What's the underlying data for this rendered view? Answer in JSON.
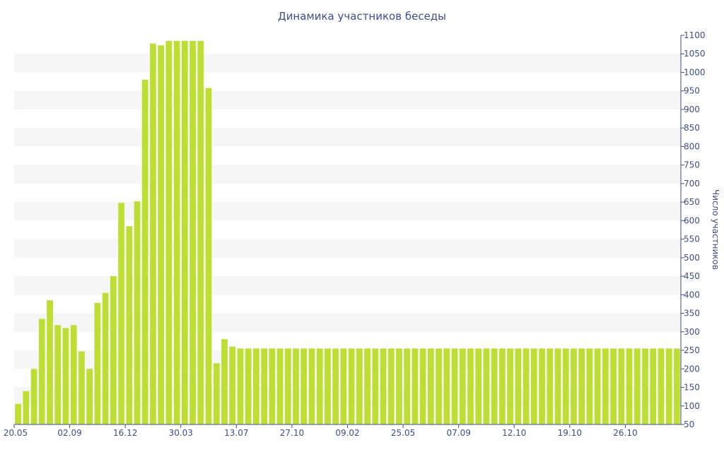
{
  "chart_data": {
    "type": "bar",
    "title": "Динамика участников беседы",
    "ylabel": "Число участников",
    "xlabel": "",
    "ylim": [
      50,
      1100
    ],
    "y_ticks": [
      50,
      100,
      150,
      200,
      250,
      300,
      350,
      400,
      450,
      500,
      550,
      600,
      650,
      700,
      750,
      800,
      850,
      900,
      950,
      1000,
      1050,
      1100
    ],
    "x_tick_labels": [
      {
        "label": "20.05",
        "index": 0
      },
      {
        "label": "02.09",
        "index": 7
      },
      {
        "label": "16.12",
        "index": 14
      },
      {
        "label": "30.03",
        "index": 21
      },
      {
        "label": "13.07",
        "index": 28
      },
      {
        "label": "27.10",
        "index": 35
      },
      {
        "label": "09.02",
        "index": 42
      },
      {
        "label": "25.05",
        "index": 49
      },
      {
        "label": "07.09",
        "index": 56
      },
      {
        "label": "12.10",
        "index": 63
      },
      {
        "label": "19.10",
        "index": 70
      },
      {
        "label": "26.10",
        "index": 77
      }
    ],
    "bar_color": "#bddf33",
    "grid": true,
    "values": [
      105,
      140,
      200,
      335,
      385,
      318,
      310,
      318,
      247,
      200,
      378,
      405,
      450,
      648,
      585,
      652,
      980,
      1078,
      1073,
      1085,
      1085,
      1085,
      1085,
      1085,
      958,
      215,
      280,
      260,
      255,
      255,
      255,
      255,
      255,
      255,
      255,
      255,
      255,
      255,
      255,
      255,
      255,
      255,
      255,
      255,
      255,
      255,
      255,
      255,
      255,
      255,
      255,
      255,
      255,
      255,
      255,
      255,
      255,
      255,
      255,
      255,
      255,
      255,
      255,
      255,
      255,
      255,
      255,
      255,
      255,
      255,
      255,
      255,
      255,
      255,
      255,
      255,
      255,
      255,
      255,
      255,
      255,
      255,
      255,
      255
    ]
  }
}
